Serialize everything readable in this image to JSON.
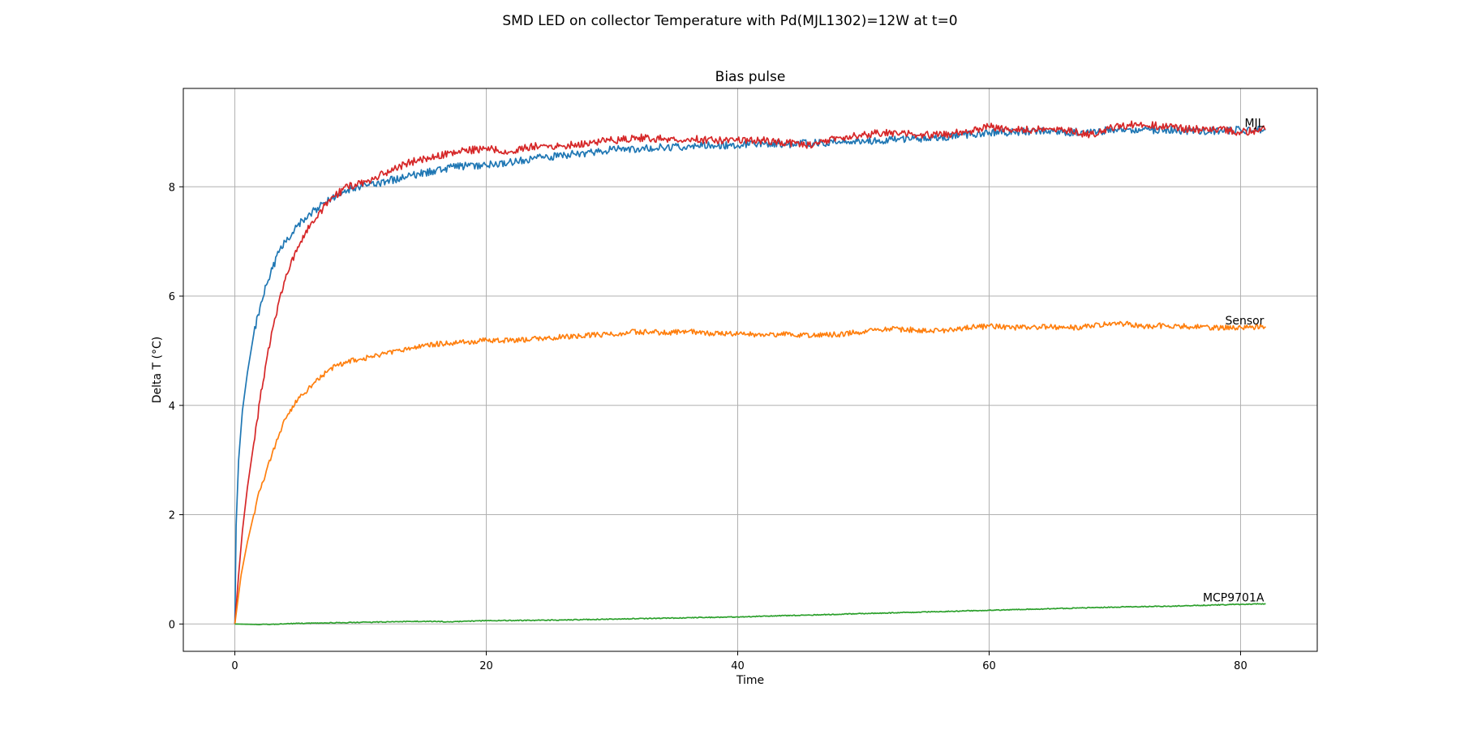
{
  "figure": {
    "suptitle": "SMD LED on collector Temperature with Pd(MJL1302)=12W at t=0"
  },
  "chart_data": {
    "type": "line",
    "title": "Bias pulse",
    "xlabel": "Time",
    "ylabel": "Delta T (°C)",
    "xlim": [
      -4.1,
      86.1
    ],
    "ylim": [
      -0.5,
      9.8
    ],
    "xticks": [
      0,
      20,
      40,
      60,
      80
    ],
    "yticks": [
      0,
      2,
      4,
      6,
      8
    ],
    "grid": true,
    "series": [
      {
        "name": "",
        "color": "#1f77b4",
        "x": [
          0,
          0.1,
          0.3,
          0.6,
          1,
          1.5,
          2,
          2.5,
          3,
          3.5,
          4,
          5,
          6,
          7,
          8,
          9,
          10,
          12,
          14,
          16,
          18,
          20,
          22,
          24,
          26,
          28,
          30,
          32,
          34,
          36,
          38,
          40,
          42,
          44,
          46,
          48,
          50,
          52,
          54,
          56,
          58,
          60,
          62,
          64,
          66,
          68,
          70,
          72,
          74,
          76,
          78,
          80,
          82
        ],
        "y": [
          0,
          1.8,
          3.0,
          3.9,
          4.6,
          5.3,
          5.8,
          6.2,
          6.5,
          6.8,
          7.0,
          7.3,
          7.5,
          7.7,
          7.8,
          7.95,
          8.0,
          8.1,
          8.2,
          8.3,
          8.38,
          8.4,
          8.45,
          8.52,
          8.58,
          8.62,
          8.68,
          8.7,
          8.72,
          8.74,
          8.76,
          8.76,
          8.8,
          8.78,
          8.8,
          8.82,
          8.84,
          8.86,
          8.88,
          8.9,
          8.95,
          9.0,
          9.0,
          9.02,
          9.0,
          9.0,
          9.05,
          9.02,
          9.05,
          9.02,
          9.02,
          9.04,
          9.05
        ]
      },
      {
        "name": "MJL",
        "color": "#d62728",
        "x": [
          0,
          0.3,
          0.6,
          1,
          1.5,
          2,
          2.5,
          3,
          3.5,
          4,
          5,
          6,
          7,
          8,
          9,
          10,
          12,
          14,
          16,
          18,
          20,
          22,
          24,
          26,
          28,
          30,
          32,
          34,
          36,
          38,
          40,
          42,
          44,
          46,
          48,
          50,
          52,
          54,
          56,
          58,
          60,
          62,
          64,
          66,
          68,
          70,
          72,
          74,
          76,
          78,
          80,
          82
        ],
        "y": [
          0,
          0.9,
          1.7,
          2.5,
          3.3,
          4.1,
          4.8,
          5.4,
          5.9,
          6.3,
          6.9,
          7.3,
          7.6,
          7.85,
          8.0,
          8.05,
          8.25,
          8.45,
          8.55,
          8.65,
          8.7,
          8.65,
          8.75,
          8.75,
          8.8,
          8.85,
          8.9,
          8.88,
          8.88,
          8.85,
          8.85,
          8.85,
          8.8,
          8.75,
          8.9,
          8.95,
          9.0,
          8.95,
          8.95,
          9.0,
          9.1,
          9.05,
          9.05,
          9.05,
          8.95,
          9.1,
          9.15,
          9.1,
          9.05,
          9.05,
          9.0,
          9.05
        ]
      },
      {
        "name": "Sensor",
        "color": "#ff7f0e",
        "x": [
          0,
          0.5,
          1,
          1.5,
          2,
          2.5,
          3,
          3.5,
          4,
          5,
          6,
          7,
          8,
          9,
          10,
          12,
          14,
          16,
          18,
          20,
          22,
          24,
          26,
          28,
          30,
          32,
          34,
          36,
          38,
          40,
          42,
          44,
          46,
          48,
          50,
          52,
          54,
          56,
          58,
          60,
          62,
          64,
          66,
          68,
          70,
          72,
          74,
          76,
          78,
          80,
          82
        ],
        "y": [
          0,
          0.9,
          1.5,
          2.0,
          2.45,
          2.8,
          3.15,
          3.45,
          3.75,
          4.1,
          4.35,
          4.55,
          4.72,
          4.8,
          4.85,
          4.95,
          5.05,
          5.12,
          5.15,
          5.2,
          5.18,
          5.22,
          5.25,
          5.28,
          5.3,
          5.35,
          5.33,
          5.35,
          5.32,
          5.3,
          5.3,
          5.3,
          5.28,
          5.3,
          5.35,
          5.4,
          5.38,
          5.36,
          5.42,
          5.45,
          5.42,
          5.44,
          5.42,
          5.44,
          5.52,
          5.45,
          5.46,
          5.44,
          5.42,
          5.43,
          5.44
        ]
      },
      {
        "name": "MCP9701A",
        "color": "#2ca02c",
        "x": [
          0,
          2,
          5,
          10,
          15,
          17,
          20,
          25,
          30,
          35,
          40,
          45,
          50,
          55,
          60,
          65,
          70,
          75,
          80,
          82
        ],
        "y": [
          0,
          -0.01,
          0.01,
          0.03,
          0.05,
          0.04,
          0.06,
          0.07,
          0.09,
          0.11,
          0.13,
          0.16,
          0.19,
          0.22,
          0.25,
          0.28,
          0.31,
          0.33,
          0.36,
          0.37
        ]
      }
    ],
    "annotations": [
      {
        "text": "MJL",
        "x": 82,
        "y": 9.05
      },
      {
        "text": "Sensor",
        "x": 82,
        "y": 5.44
      },
      {
        "text": "MCP9701A",
        "x": 82,
        "y": 0.37
      }
    ]
  }
}
